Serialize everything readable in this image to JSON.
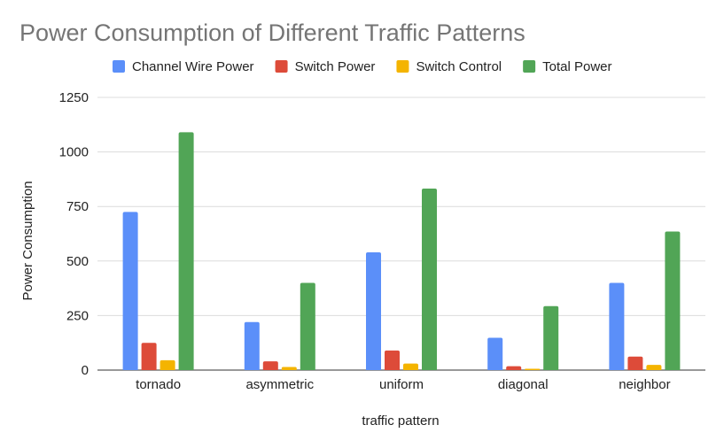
{
  "chart_data": {
    "type": "bar",
    "title": "Power Consumption of Different Traffic Patterns",
    "xlabel": "traffic pattern",
    "ylabel": "Power Consumption",
    "categories": [
      "tornado",
      "asymmetric",
      "uniform",
      "diagonal",
      "neighbor"
    ],
    "series": [
      {
        "name": "Channel Wire Power",
        "color": "#5b8ff9",
        "values": [
          725,
          220,
          540,
          148,
          400
        ]
      },
      {
        "name": "Switch Power",
        "color": "#dd4b39",
        "values": [
          125,
          40,
          90,
          18,
          62
        ]
      },
      {
        "name": "Switch Control",
        "color": "#f4b400",
        "values": [
          45,
          14,
          30,
          6,
          24
        ]
      },
      {
        "name": "Total Power",
        "color": "#51a556",
        "values": [
          1090,
          400,
          832,
          293,
          635
        ]
      }
    ],
    "ylim": [
      0,
      1250
    ],
    "yticks": [
      0,
      250,
      500,
      750,
      1000,
      1250
    ],
    "grid": true,
    "legend_position": "top"
  }
}
